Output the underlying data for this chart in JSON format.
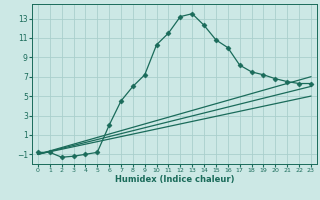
{
  "title": "",
  "xlabel": "Humidex (Indice chaleur)",
  "ylabel": "",
  "bg_color": "#cce8e5",
  "grid_color": "#aacfcc",
  "line_color": "#1a6b5a",
  "xlim": [
    -0.5,
    23.5
  ],
  "ylim": [
    -2.0,
    14.5
  ],
  "xticks": [
    0,
    1,
    2,
    3,
    4,
    5,
    6,
    7,
    8,
    9,
    10,
    11,
    12,
    13,
    14,
    15,
    16,
    17,
    18,
    19,
    20,
    21,
    22,
    23
  ],
  "yticks": [
    -1,
    1,
    3,
    5,
    7,
    9,
    11,
    13
  ],
  "curve1_x": [
    0,
    1,
    2,
    3,
    4,
    5,
    6,
    7,
    8,
    9,
    10,
    11,
    12,
    13,
    14,
    15,
    16,
    17,
    18,
    19,
    20,
    21,
    22,
    23
  ],
  "curve1_y": [
    -0.8,
    -0.8,
    -1.3,
    -1.2,
    -1.0,
    -0.8,
    2.0,
    4.5,
    6.0,
    7.2,
    10.3,
    11.5,
    13.2,
    13.5,
    12.3,
    10.8,
    10.0,
    8.2,
    7.5,
    7.2,
    6.8,
    6.5,
    6.3,
    6.3
  ],
  "line1_x": [
    0,
    23
  ],
  "line1_y": [
    -1.0,
    7.0
  ],
  "line2_x": [
    0,
    23
  ],
  "line2_y": [
    -1.0,
    6.0
  ],
  "line3_x": [
    0,
    23
  ],
  "line3_y": [
    -1.0,
    5.0
  ],
  "marker": "D",
  "marker_size": 2.5,
  "line_width": 0.9
}
